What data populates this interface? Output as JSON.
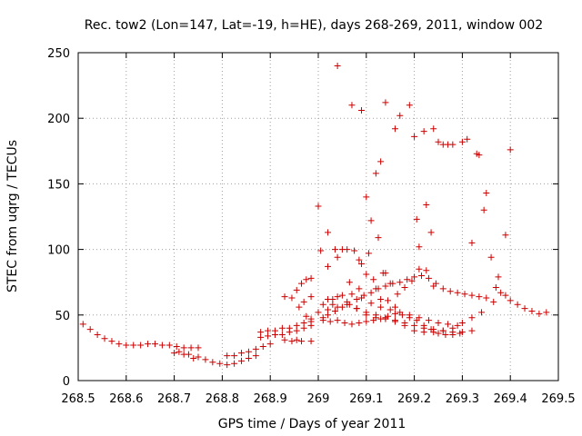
{
  "chart_data": {
    "type": "scatter",
    "title": "Rec. tow2 (Lon=147, Lat=-19, h=HE), days 268-269, 2011, window 002",
    "xlabel": "GPS time / Days of year 2011",
    "ylabel": "STEC from uqrg / TECUs",
    "xlim": [
      268.5,
      269.5
    ],
    "ylim": [
      0,
      250
    ],
    "xticks": [
      268.5,
      268.6,
      268.7,
      268.8,
      268.9,
      269.0,
      269.1,
      269.2,
      269.3,
      269.4,
      269.5
    ],
    "xtick_labels": [
      "268.5",
      "268.6",
      "268.7",
      "268.8",
      "268.9",
      "269",
      "269.1",
      "269.2",
      "269.3",
      "269.4",
      "269.5"
    ],
    "yticks": [
      0,
      50,
      100,
      150,
      200,
      250
    ],
    "ytick_labels": [
      "0",
      "50",
      "100",
      "150",
      "200",
      "250"
    ],
    "grid": true,
    "marker": "+",
    "color": "#cc0000",
    "series": [
      {
        "name": "STEC",
        "x": [
          268.51,
          268.525,
          268.54,
          268.555,
          268.57,
          268.585,
          268.6,
          268.615,
          268.63,
          268.645,
          268.66,
          268.675,
          268.69,
          268.705,
          268.72,
          268.735,
          268.75,
          268.7,
          268.71,
          268.72,
          268.73,
          268.74,
          268.75,
          268.765,
          268.78,
          268.795,
          268.81,
          268.825,
          268.84,
          268.855,
          268.87,
          268.81,
          268.825,
          268.84,
          268.855,
          268.87,
          268.885,
          268.9,
          268.88,
          268.895,
          268.91,
          268.925,
          268.94,
          268.955,
          268.97,
          268.985,
          268.88,
          268.895,
          268.91,
          268.925,
          268.94,
          268.955,
          268.97,
          268.985,
          268.93,
          268.945,
          268.96,
          268.975,
          268.985,
          268.93,
          268.945,
          268.955,
          268.965,
          268.985,
          268.955,
          268.965,
          268.975,
          268.985,
          269.01,
          269.02,
          269.035,
          269.05,
          269.065,
          269.08,
          269.095,
          269.11,
          269.125,
          269.14,
          269.155,
          269.17,
          269.185,
          269.2,
          269.215,
          269.23,
          269.245,
          269.26,
          269.275,
          269.29,
          269.305,
          269.32,
          269.335,
          269.35,
          269.365,
          269.01,
          269.025,
          269.04,
          269.055,
          269.07,
          269.085,
          269.1,
          269.115,
          269.13,
          269.145,
          269.16,
          269.175,
          269.19,
          269.205,
          269.22,
          269.235,
          269.25,
          269.265,
          269.28,
          269.295,
          269.0,
          269.02,
          269.04,
          269.06,
          269.08,
          269.1,
          269.12,
          269.14,
          269.16,
          269.18,
          269.2,
          269.22,
          269.24,
          269.26,
          269.28,
          269.3,
          269.32,
          269.34,
          269.02,
          269.04,
          269.06,
          269.08,
          269.1,
          269.12,
          269.14,
          269.16,
          269.18,
          269.2,
          269.22,
          269.24,
          269.26,
          269.28,
          269.3,
          269.32,
          269.01,
          269.03,
          269.05,
          269.07,
          269.09,
          269.11,
          269.13,
          269.15,
          269.17,
          269.19,
          269.21,
          269.23,
          269.25,
          269.27,
          269.29,
          268.97,
          268.985,
          269.005,
          269.02,
          269.04,
          269.06,
          269.075,
          269.09,
          269.105,
          269.12,
          269.135,
          269.15,
          269.165,
          269.18,
          269.195,
          269.21,
          269.225,
          269.24,
          269.0,
          269.02,
          269.035,
          269.05,
          269.065,
          269.085,
          269.1,
          269.115,
          269.13,
          269.145,
          269.16,
          269.04,
          269.07,
          269.09,
          269.1,
          269.12,
          269.13,
          269.14,
          269.16,
          269.17,
          269.19,
          269.2,
          269.22,
          269.24,
          269.25,
          269.26,
          269.27,
          269.28,
          269.3,
          269.31,
          269.33,
          269.35,
          269.4,
          269.03,
          269.085,
          269.11,
          269.125,
          269.14,
          269.205,
          269.21,
          269.225,
          269.235,
          269.32,
          269.335,
          269.345,
          269.36,
          269.375,
          269.39,
          269.37,
          269.38,
          269.39,
          269.4,
          269.415,
          269.43,
          269.445,
          269.46,
          269.475
        ],
        "y": [
          43,
          39,
          35,
          32,
          30,
          28,
          27,
          27,
          27,
          28,
          28,
          27,
          27,
          26,
          25,
          25,
          25,
          21,
          22,
          20,
          20,
          17,
          18,
          16,
          14,
          13,
          12,
          13,
          15,
          17,
          19,
          19,
          19,
          21,
          22,
          24,
          26,
          28,
          37,
          38,
          38,
          40,
          40,
          42,
          44,
          45,
          33,
          34,
          35,
          35,
          37,
          38,
          40,
          42,
          64,
          63,
          56,
          49,
          47,
          31,
          30,
          31,
          30,
          30,
          69,
          74,
          77,
          78,
          48,
          50,
          53,
          56,
          58,
          62,
          65,
          67,
          70,
          72,
          74,
          75,
          77,
          79,
          80,
          78,
          74,
          70,
          68,
          67,
          66,
          65,
          64,
          63,
          60,
          46,
          45,
          46,
          44,
          43,
          44,
          45,
          46,
          47,
          49,
          51,
          50,
          48,
          46,
          42,
          39,
          36,
          35,
          35,
          36,
          52,
          54,
          56,
          58,
          55,
          50,
          48,
          47,
          45,
          42,
          38,
          37,
          37,
          38,
          40,
          44,
          48,
          52,
          62,
          64,
          60,
          55,
          52,
          50,
          48,
          46,
          44,
          42,
          40,
          39,
          38,
          37,
          37,
          38,
          58,
          62,
          65,
          66,
          63,
          59,
          56,
          54,
          52,
          50,
          48,
          46,
          44,
          43,
          42,
          60,
          64,
          99,
          87,
          94,
          100,
          99,
          89,
          97,
          70,
          82,
          74,
          66,
          71,
          76,
          85,
          84,
          72,
          133,
          113,
          100,
          100,
          75,
          70,
          81,
          77,
          62,
          61,
          56,
          240,
          210,
          206,
          140,
          158,
          167,
          212,
          192,
          202,
          210,
          186,
          190,
          192,
          182,
          180,
          180,
          180,
          182,
          184,
          173,
          143,
          176,
          58,
          92,
          122,
          109,
          82,
          123,
          102,
          134,
          113,
          105,
          172,
          130,
          94,
          79,
          111,
          71,
          67,
          65,
          61,
          58,
          55,
          53,
          51,
          52
        ]
      }
    ]
  }
}
